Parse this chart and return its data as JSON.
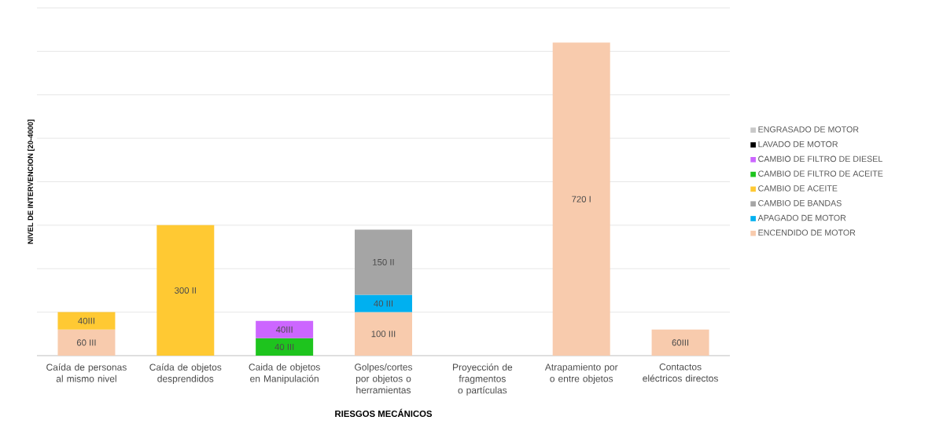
{
  "chart_data": {
    "type": "bar",
    "stacked": true,
    "xlabel": "RIESGOS MECÁNICOS",
    "ylabel": "NIVEL DE INTERVENCION [20-4000]",
    "categories": [
      "Caída de personas al mismo nivel",
      "Caída de objetos desprendidos",
      "Caida de objetos en Manipulación",
      "Golpes/cortes por objetos o herramientas",
      "Proyección de fragmentos o partículas",
      "Atrapamiento por o entre objetos",
      "Contactos eléctricos directos"
    ],
    "ylim": [
      0,
      800
    ],
    "yticks": [
      {
        "value": 0,
        "label": null
      },
      {
        "value": 100,
        "label": null
      },
      {
        "value": 200,
        "label": null
      },
      {
        "value": 300,
        "label": null
      },
      {
        "value": 400,
        "label": null
      },
      {
        "value": 500,
        "label": null
      },
      {
        "value": 600,
        "label": null
      },
      {
        "value": 700,
        "label": null
      },
      {
        "value": 800,
        "label": null
      }
    ],
    "grid": "y",
    "tick_labels": "x",
    "legend": "right",
    "series": [
      {
        "name": "ENCENDIDO DE MOTOR",
        "color": "#f8cbad",
        "values": [
          60,
          null,
          null,
          100,
          null,
          720,
          60
        ],
        "value_labels": [
          "60 III",
          null,
          null,
          "100 III",
          null,
          "720 I",
          "60III"
        ]
      },
      {
        "name": "APAGADO DE MOTOR",
        "color": "#00b0f0",
        "values": [
          null,
          null,
          null,
          40,
          null,
          null,
          null
        ],
        "value_labels": [
          null,
          null,
          null,
          "40 III",
          null,
          null,
          null
        ]
      },
      {
        "name": "CAMBIO DE BANDAS",
        "color": "#a5a5a5",
        "values": [
          null,
          null,
          null,
          150,
          null,
          null,
          null
        ],
        "value_labels": [
          null,
          null,
          null,
          "150 II",
          null,
          null,
          null
        ]
      },
      {
        "name": "CAMBIO DE ACEITE",
        "color": "#ffc933",
        "values": [
          40,
          300,
          null,
          null,
          null,
          null,
          null
        ],
        "value_labels": [
          "40III",
          "300 II",
          null,
          null,
          null,
          null,
          null
        ]
      },
      {
        "name": "CAMBIO DE FILTRO DE ACEITE",
        "color": "#1ec41e",
        "values": [
          null,
          null,
          40,
          null,
          null,
          null,
          null
        ],
        "value_labels": [
          null,
          null,
          "40 III",
          null,
          null,
          null,
          null
        ]
      },
      {
        "name": "CAMBIO DE FILTRO DE DIESEL",
        "color": "#cc66ff",
        "values": [
          null,
          null,
          40,
          null,
          null,
          null,
          null
        ],
        "value_labels": [
          null,
          null,
          "40III",
          null,
          null,
          null,
          null
        ]
      },
      {
        "name": "LAVADO DE MOTOR",
        "color": "#000000",
        "values": [
          null,
          null,
          null,
          null,
          null,
          null,
          null
        ]
      },
      {
        "name": "ENGRASADO DE MOTOR",
        "color": "#c8c8c8",
        "values": [
          null,
          null,
          null,
          null,
          null,
          null,
          null
        ]
      }
    ]
  }
}
